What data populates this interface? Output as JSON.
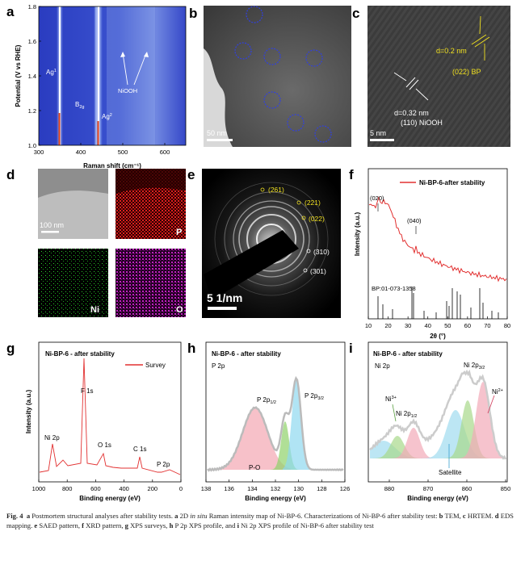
{
  "figure": {
    "panels": {
      "a": {
        "letter": "a",
        "xlabel": "Raman shift (cm⁻¹)",
        "ylabel": "Potential (V vs RHE)",
        "xticks": [
          "300",
          "400",
          "500",
          "600"
        ],
        "yticks": [
          "1.0",
          "1.2",
          "1.4",
          "1.6",
          "1.8"
        ],
        "labels": {
          "ag1": "Ag",
          "ag1_sup": "1",
          "b2g": "B",
          "b2g_sub": "2g",
          "ag2": "Ag",
          "ag2_sup": "2",
          "niooh": "NiOOH"
        },
        "colors": {
          "background": "#3548c8",
          "band": "#d63a1a"
        }
      },
      "b": {
        "letter": "b",
        "scalebar": "50 nm"
      },
      "c": {
        "letter": "c",
        "scalebar": "5 nm",
        "d1": "d=0.2 nm",
        "plane1": "(022) BP",
        "d2": "d=0.32 nm",
        "plane2": "(110)  NiOOH"
      },
      "d": {
        "letter": "d",
        "scalebar": "100 nm",
        "maps": [
          "P",
          "Ni",
          "O"
        ]
      },
      "e": {
        "letter": "e",
        "scalebar": "5 1/nm",
        "rings": [
          "(261)",
          "(221)",
          "(022)",
          "(310)",
          "(301)"
        ]
      },
      "f": {
        "letter": "f",
        "legend": "Ni-BP-6-after stability",
        "peaks": [
          "(020)",
          "(040)"
        ],
        "ref": "BP:01-073-1358",
        "xlabel": "2θ (°)",
        "ylabel": "Intensity (a.u.)",
        "xticks": [
          "10",
          "20",
          "30",
          "40",
          "50",
          "60",
          "70",
          "80"
        ]
      },
      "g": {
        "letter": "g",
        "title": "Ni-BP-6 - after stability",
        "legend": "Survey",
        "peaks": {
          "f1s": "F 1s",
          "o1s": "O 1s",
          "c1s": "C 1s",
          "ni2p": "Ni 2p",
          "p2p": "P 2p"
        },
        "xlabel": "Binding energy (eV)",
        "ylabel": "Intensity (a.u.)",
        "xticks": [
          "1000",
          "800",
          "600",
          "400",
          "200",
          "0"
        ]
      },
      "h": {
        "letter": "h",
        "title": "Ni-BP-6 - after stability",
        "subtitle": "P 2p",
        "peaks": {
          "p12": "P 2p",
          "p12_sub": "1/2",
          "p32": "P 2p",
          "p32_sub": "3/2",
          "po": "P-O"
        },
        "xlabel": "Binding energy (eV)",
        "xticks": [
          "138",
          "136",
          "134",
          "132",
          "130",
          "128",
          "126"
        ]
      },
      "i": {
        "letter": "i",
        "title": "Ni-BP-6 - after stability",
        "subtitle": "Ni 2p",
        "peaks": {
          "ni3": "Ni",
          "ni3_sup": "3+",
          "ni2p12": "Ni 2p",
          "ni2p12_sub": "1/2",
          "ni2p32": "Ni 2p",
          "ni2p32_sub": "3/2",
          "ni2": "Ni",
          "ni2_sup": "2+",
          "sat": "Satellite"
        },
        "xlabel": "Binding energy (eV)",
        "xticks": [
          "880",
          "870",
          "860",
          "850"
        ]
      }
    },
    "caption": {
      "label": "Fig. 4",
      "a_letter": "a",
      "a_text": "Postmortem structural analyses after stability tests.",
      "a2_letter": "a",
      "a2_pre": "2D",
      "a2_italic": "in situ",
      "a2_post": "Raman intensity map of Ni-BP-6. Characterizations of Ni-BP-6 after stability test:",
      "b_letter": "b",
      "b_text": "TEM,",
      "c_letter": "c",
      "c_text": "HRTEM.",
      "d_letter": "d",
      "d_text": "EDS mapping.",
      "e_letter": "e",
      "e_text": "SAED pattern,",
      "f_letter": "f",
      "f_text": "XRD pattern,",
      "g_letter": "g",
      "g_text": "XPS surveys,",
      "h_letter": "h",
      "h_text": "P 2p XPS profile, and",
      "i_letter": "i",
      "i_text": "Ni 2p XPS profile of Ni-BP-6 after stability test"
    }
  }
}
